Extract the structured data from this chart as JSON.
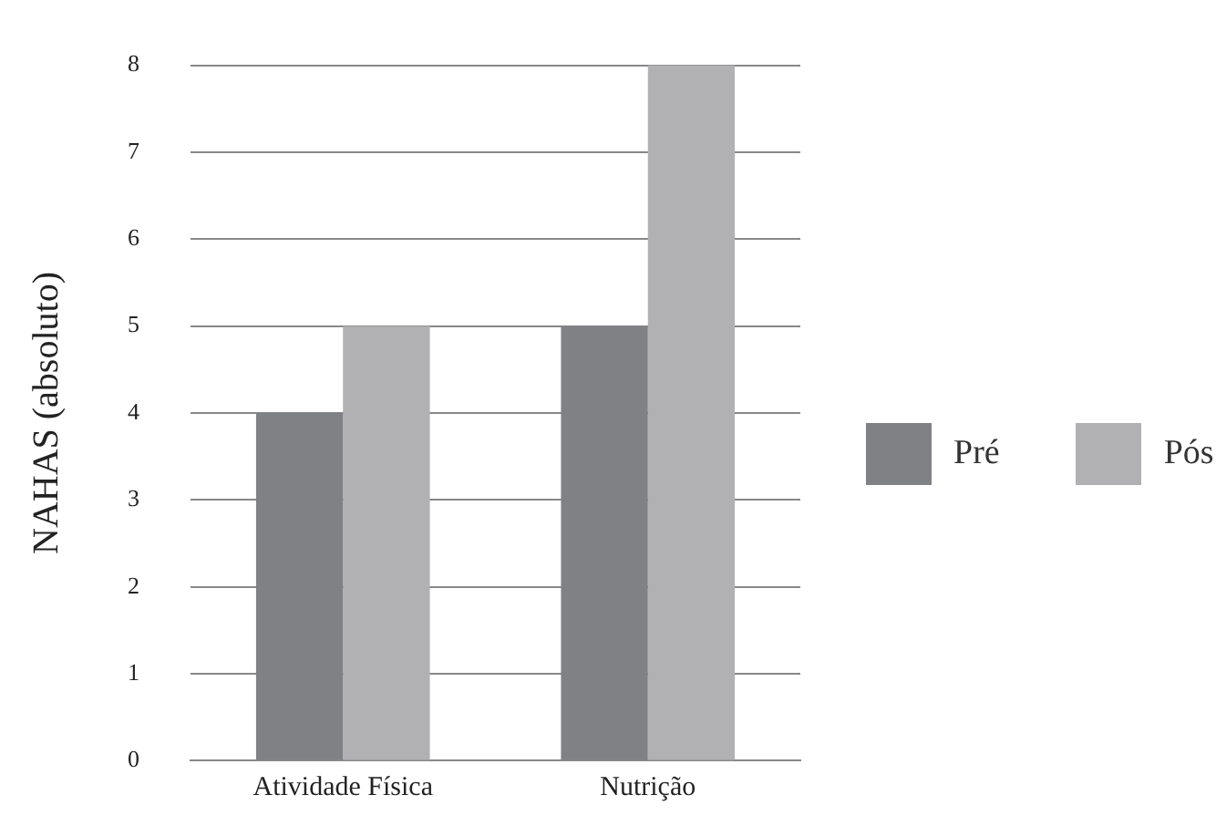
{
  "chart_data": {
    "type": "bar",
    "ylabel": "NAHAS (absoluto)",
    "categories": [
      "Atividade Física",
      "Nutrição"
    ],
    "series": [
      {
        "name": "Pré",
        "color": "#808184",
        "values": [
          4,
          5
        ]
      },
      {
        "name": "Pós",
        "color": "#b1b1b3",
        "values": [
          5,
          8
        ]
      }
    ],
    "ylim": [
      0,
      8
    ],
    "yticks": [
      0,
      1,
      2,
      3,
      4,
      5,
      6,
      7,
      8
    ],
    "grid": "y",
    "legend": "right"
  }
}
